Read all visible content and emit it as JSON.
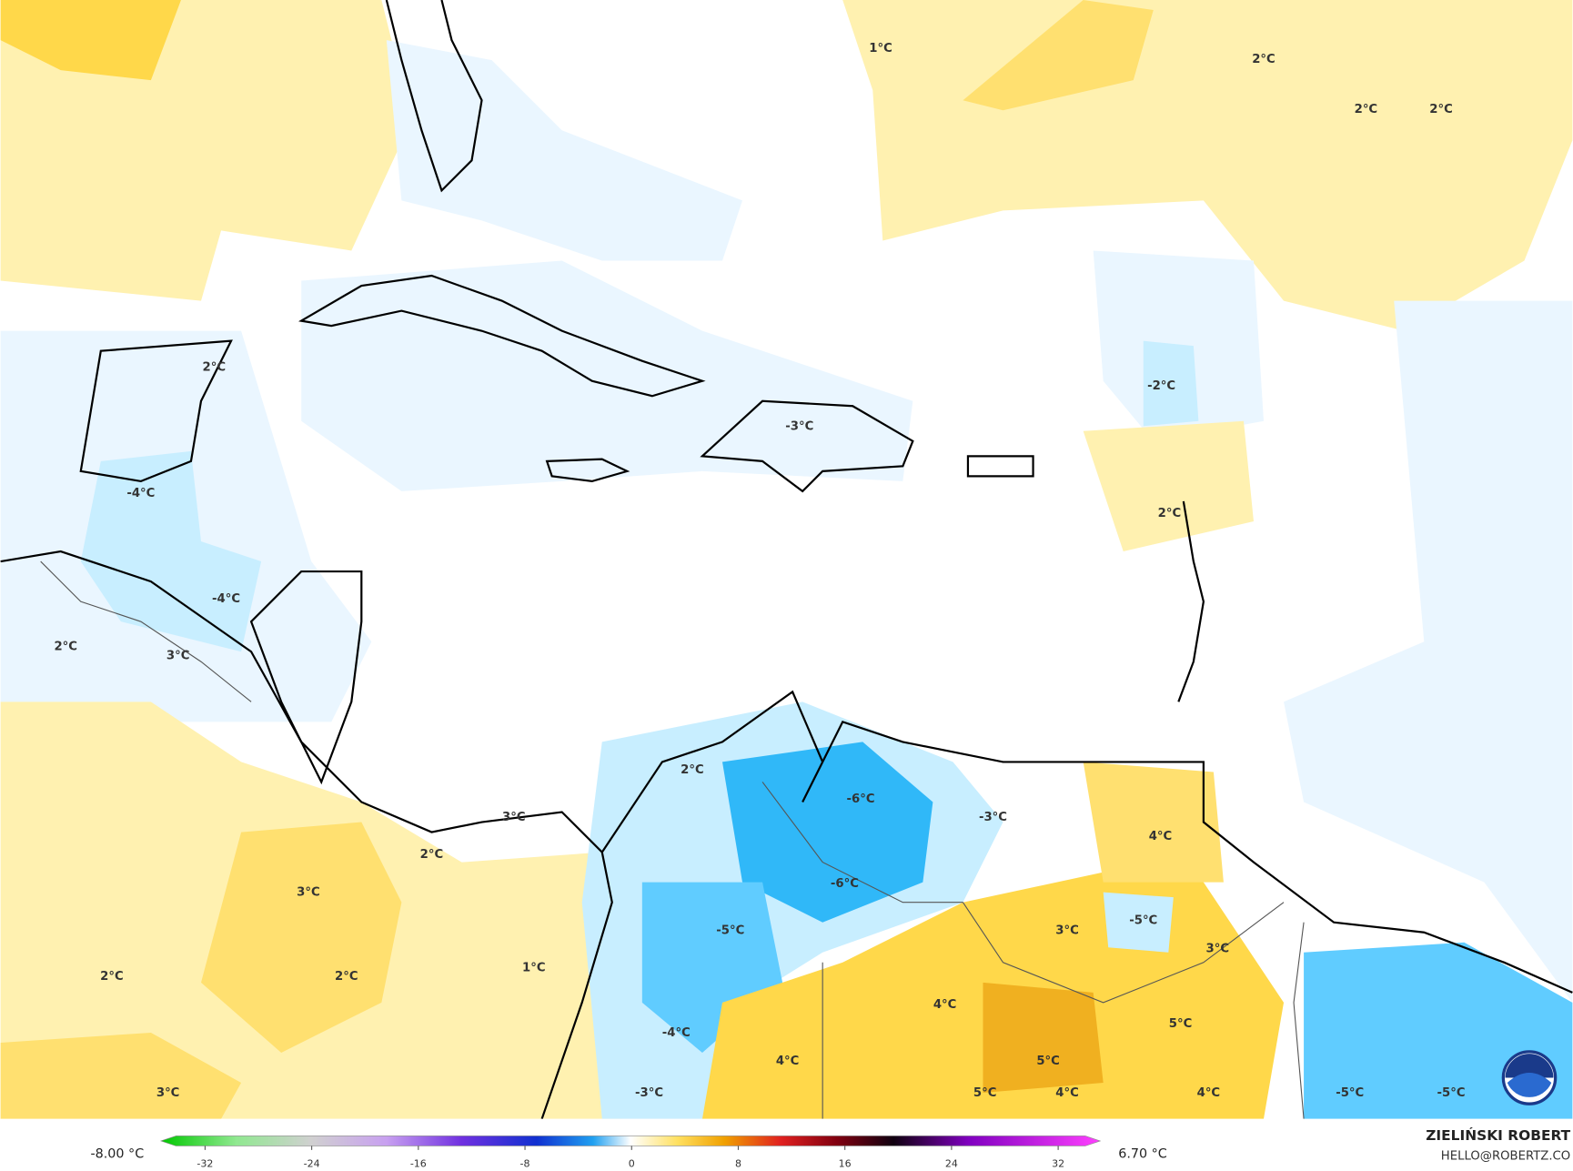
{
  "map": {
    "labels": [
      "1°C",
      "2°C",
      "2°C",
      "2°C",
      "2°C",
      "-2°C",
      "-3°C",
      "-4°C",
      "2°C",
      "-4°C",
      "2°C",
      "3°C",
      "2°C",
      "-6°C",
      "-3°C",
      "4°C",
      "3°C",
      "2°C",
      "-6°C",
      "3°C",
      "-5°C",
      "3°C",
      "3°C",
      "-5°C",
      "1°C",
      "2°C",
      "2°C",
      "4°C",
      "5°C",
      "-4°C",
      "4°C",
      "5°C",
      "3°C",
      "-3°C",
      "5°C",
      "4°C",
      "4°C",
      "-5°C",
      "-5°C"
    ],
    "colorbar": {
      "min_label": "-8.00 °C",
      "max_label": "6.70 °C",
      "ticks": [
        -32,
        -24,
        -16,
        -8,
        0,
        8,
        16,
        24,
        32
      ]
    }
  },
  "credit": {
    "name": "ZIELIŃSKI ROBERT",
    "email": "HELLO@ROBERTZ.CO"
  }
}
